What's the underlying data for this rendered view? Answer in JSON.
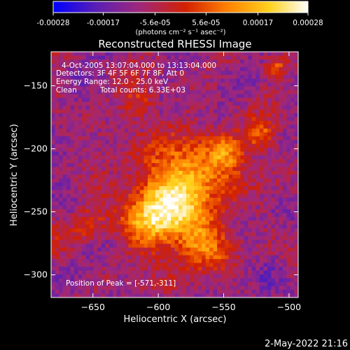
{
  "chart_data": {
    "type": "heatmap",
    "title": "Reconstructed RHESSI Image",
    "xlabel": "Heliocentric X (arcsec)",
    "ylabel": "Heliocentric Y (arcsec)",
    "xlim": [
      -682,
      -493
    ],
    "ylim": [
      -318,
      -123
    ],
    "xticks": [
      -650,
      -600,
      -550,
      -500
    ],
    "yticks": [
      -150,
      -200,
      -250,
      -300
    ],
    "colorbar": {
      "min": -0.00028,
      "max": 0.00028,
      "ticks": [
        -0.00028,
        -0.00017,
        -5.6e-05,
        5.6e-05,
        0.00017,
        0.00028
      ],
      "tick_labels": [
        "-0.00028",
        "-0.00017",
        "-5.6e-05",
        "5.6e-05",
        "0.00017",
        "0.00028"
      ],
      "unit": "(photons cm⁻² s⁻¹ asec⁻²)",
      "colors": [
        "#0000ff",
        "#5a1fb4",
        "#a0287a",
        "#d22000",
        "#ff7f00",
        "#ffd21e",
        "#ffffff"
      ]
    },
    "annotations": {
      "time": "4-Oct-2005 13:07:04.000 to 13:13:04.000",
      "detectors": "Detectors: 3F 4F 5F 6F 7F 8F, Att 0",
      "energy": "Energy Range: 12.0 - 25.0 keV",
      "method": "Clean",
      "counts": "Total counts: 6.33E+03",
      "peak": "Position of Peak = [-571,-311]"
    },
    "peak": [
      -571,
      -311
    ]
  },
  "footer": {
    "date": "2-May-2022 21:16"
  }
}
